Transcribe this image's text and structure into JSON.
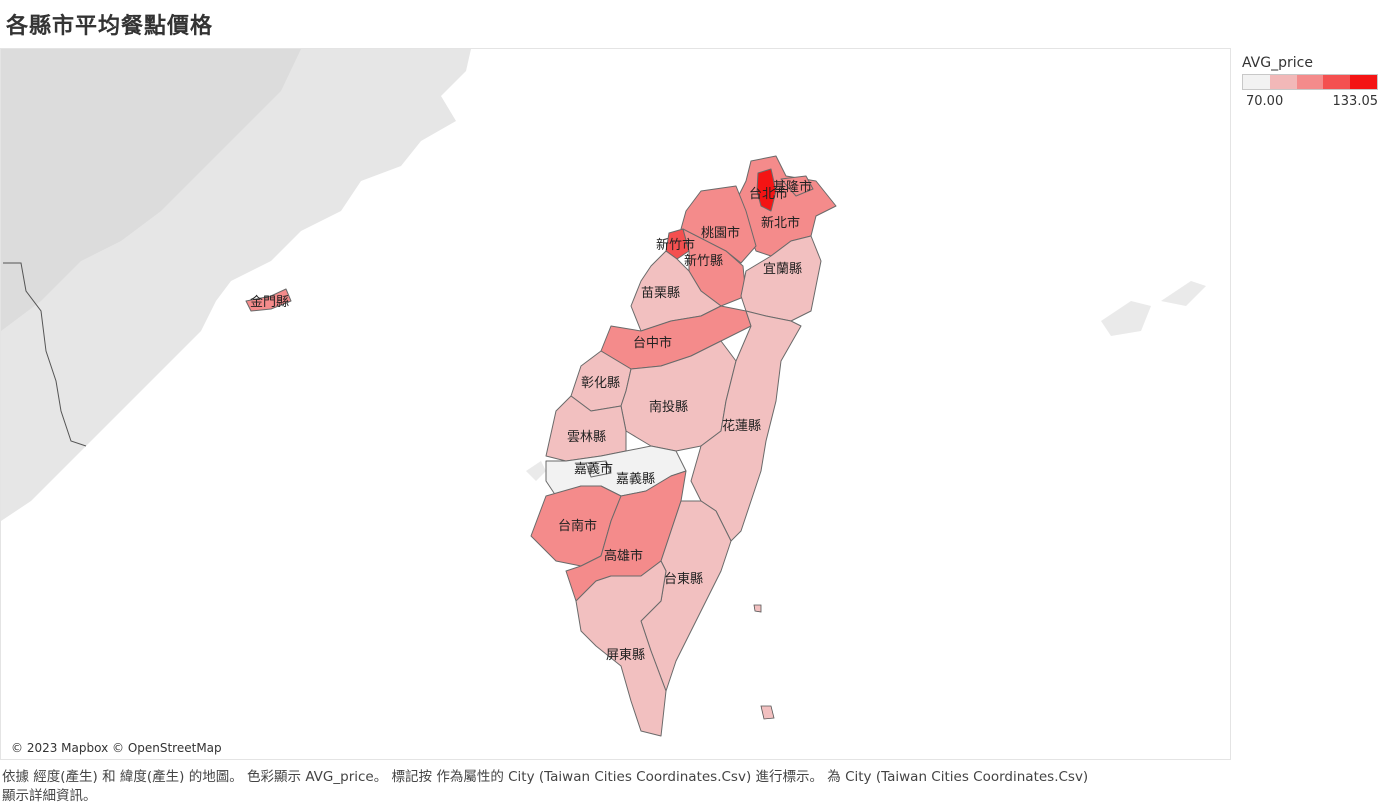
{
  "title": "各縣市平均餐點價格",
  "attribution": "© 2023 Mapbox © OpenStreetMap",
  "legend": {
    "title": "AVG_price",
    "min": "70.00",
    "max": "133.05",
    "colors": [
      "#f2f2f2",
      "#f2b8b8",
      "#f48b8b",
      "#f45050",
      "#f41414"
    ]
  },
  "counties": [
    {
      "name": "台北市",
      "color": "#f41414"
    },
    {
      "name": "基隆市",
      "color": "#f48b8b"
    },
    {
      "name": "新北市",
      "color": "#f48b8b"
    },
    {
      "name": "桃園市",
      "color": "#f48b8b"
    },
    {
      "name": "新竹市",
      "color": "#f45050"
    },
    {
      "name": "新竹縣",
      "color": "#f48b8b"
    },
    {
      "name": "宜蘭縣",
      "color": "#f2c0c0"
    },
    {
      "name": "苗栗縣",
      "color": "#f2c0c0"
    },
    {
      "name": "台中市",
      "color": "#f48b8b"
    },
    {
      "name": "彰化縣",
      "color": "#f2c0c0"
    },
    {
      "name": "南投縣",
      "color": "#f2c0c0"
    },
    {
      "name": "花蓮縣",
      "color": "#f2c0c0"
    },
    {
      "name": "雲林縣",
      "color": "#f2c0c0"
    },
    {
      "name": "嘉義市",
      "color": "#f2f2f2"
    },
    {
      "name": "嘉義縣",
      "color": "#f2f2f2"
    },
    {
      "name": "台南市",
      "color": "#f48b8b"
    },
    {
      "name": "高雄市",
      "color": "#f48b8b"
    },
    {
      "name": "台東縣",
      "color": "#f2c0c0"
    },
    {
      "name": "屏東縣",
      "color": "#f2c0c0"
    },
    {
      "name": "金門縣",
      "color": "#f48b8b"
    }
  ],
  "caption": {
    "line1": "依據 經度(產生) 和 緯度(產生) 的地圖。 色彩顯示 AVG_price。 標記按 作為屬性的 City (Taiwan Cities Coordinates.Csv) 進行標示。 為 City (Taiwan Cities Coordinates.Csv)",
    "line2": "顯示詳細資訊。"
  }
}
